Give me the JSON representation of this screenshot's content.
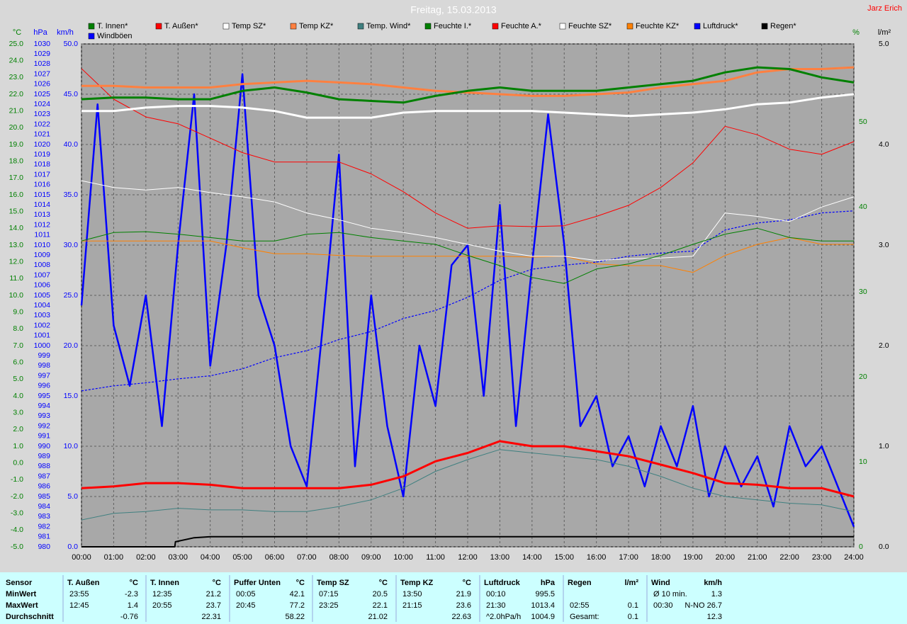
{
  "author": "Jarz Erich",
  "chart_data": {
    "type": "line",
    "title": "Freitag, 15.03.2013",
    "xlim": [
      0,
      24
    ],
    "xticks": [
      {
        "value": 0,
        "label": "00:00"
      },
      {
        "value": 1,
        "label": "01:00"
      },
      {
        "value": 2,
        "label": "02:00"
      },
      {
        "value": 3,
        "label": "03:00"
      },
      {
        "value": 4,
        "label": "04:00"
      },
      {
        "value": 5,
        "label": "05:00"
      },
      {
        "value": 6,
        "label": "06:00"
      },
      {
        "value": 7,
        "label": "07:00"
      },
      {
        "value": 8,
        "label": "08:00"
      },
      {
        "value": 9,
        "label": "09:00"
      },
      {
        "value": 10,
        "label": "10:00"
      },
      {
        "value": 11,
        "label": "11:00"
      },
      {
        "value": 12,
        "label": "12:00"
      },
      {
        "value": 13,
        "label": "13:00"
      },
      {
        "value": 14,
        "label": "14:00"
      },
      {
        "value": 15,
        "label": "15:00"
      },
      {
        "value": 16,
        "label": "16:00"
      },
      {
        "value": 17,
        "label": "17:00"
      },
      {
        "value": 18,
        "label": "18:00"
      },
      {
        "value": 19,
        "label": "19:00"
      },
      {
        "value": 20,
        "label": "20:00"
      },
      {
        "value": 21,
        "label": "21:00"
      },
      {
        "value": 22,
        "label": "22:00"
      },
      {
        "value": 23,
        "label": "23:00"
      },
      {
        "value": 24,
        "label": "24:00"
      }
    ],
    "grid": true,
    "x": [
      0,
      1,
      2,
      3,
      4,
      5,
      6,
      7,
      8,
      9,
      10,
      11,
      12,
      13,
      14,
      15,
      16,
      17,
      18,
      19,
      20,
      21,
      22,
      23,
      24
    ],
    "axes": [
      {
        "label": "°C",
        "side": "left",
        "color": "#008000",
        "lim": [
          -5,
          25
        ],
        "ticks": [
          {
            "value": -5,
            "label": "-5.0"
          },
          {
            "value": -4,
            "label": "-4.0"
          },
          {
            "value": -3,
            "label": "-3.0"
          },
          {
            "value": -2,
            "label": "-2.0"
          },
          {
            "value": -1,
            "label": "-1.0"
          },
          {
            "value": 0,
            "label": "0.0"
          },
          {
            "value": 1,
            "label": "1.0"
          },
          {
            "value": 2,
            "label": "2.0"
          },
          {
            "value": 3,
            "label": "3.0"
          },
          {
            "value": 4,
            "label": "4.0"
          },
          {
            "value": 5,
            "label": "5.0"
          },
          {
            "value": 6,
            "label": "6.0"
          },
          {
            "value": 7,
            "label": "7.0"
          },
          {
            "value": 8,
            "label": "8.0"
          },
          {
            "value": 9,
            "label": "9.0"
          },
          {
            "value": 10,
            "label": "10.0"
          },
          {
            "value": 11,
            "label": "11.0"
          },
          {
            "value": 12,
            "label": "12.0"
          },
          {
            "value": 13,
            "label": "13.0"
          },
          {
            "value": 14,
            "label": "14.0"
          },
          {
            "value": 15,
            "label": "15.0"
          },
          {
            "value": 16,
            "label": "16.0"
          },
          {
            "value": 17,
            "label": "17.0"
          },
          {
            "value": 18,
            "label": "18.0"
          },
          {
            "value": 19,
            "label": "19.0"
          },
          {
            "value": 20,
            "label": "20.0"
          },
          {
            "value": 21,
            "label": "21.0"
          },
          {
            "value": 22,
            "label": "22.0"
          },
          {
            "value": 23,
            "label": "23.0"
          },
          {
            "value": 24,
            "label": "24.0"
          },
          {
            "value": 25,
            "label": "25.0"
          }
        ]
      },
      {
        "label": "hPa",
        "side": "left",
        "color": "#0000ff",
        "lim": [
          980,
          1030
        ],
        "ticks": [
          980,
          981,
          982,
          983,
          984,
          985,
          986,
          987,
          988,
          989,
          990,
          991,
          992,
          993,
          994,
          995,
          996,
          997,
          998,
          999,
          1000,
          1001,
          1002,
          1003,
          1004,
          1005,
          1006,
          1007,
          1008,
          1009,
          1010,
          1011,
          1012,
          1013,
          1014,
          1015,
          1016,
          1017,
          1018,
          1019,
          1020,
          1021,
          1022,
          1023,
          1024,
          1025,
          1026,
          1027,
          1028,
          1029,
          1030
        ]
      },
      {
        "label": "km/h",
        "side": "left",
        "color": "#0000ff",
        "lim": [
          0,
          50
        ],
        "grid": true,
        "ticks": [
          {
            "value": 0,
            "label": "0.0"
          },
          {
            "value": 5,
            "label": "5.0"
          },
          {
            "value": 10,
            "label": "10.0"
          },
          {
            "value": 15,
            "label": "15.0"
          },
          {
            "value": 20,
            "label": "20.0"
          },
          {
            "value": 25,
            "label": "25.0"
          },
          {
            "value": 30,
            "label": "30.0"
          },
          {
            "value": 35,
            "label": "35.0"
          },
          {
            "value": 40,
            "label": "40.0"
          },
          {
            "value": 45,
            "label": "45.0"
          },
          {
            "value": 50,
            "label": "50.0"
          }
        ]
      },
      {
        "label": "%",
        "side": "right",
        "color": "#008000",
        "lim": [
          0,
          59.2
        ],
        "ticks": [
          0,
          10,
          20,
          30,
          40,
          50
        ]
      },
      {
        "label": "l/m²",
        "side": "right",
        "color": "#000000",
        "lim": [
          0,
          5
        ],
        "ticks": [
          {
            "value": 0,
            "label": "0.0"
          },
          {
            "value": 1,
            "label": "1.0"
          },
          {
            "value": 2,
            "label": "2.0"
          },
          {
            "value": 3,
            "label": "3.0"
          },
          {
            "value": 4,
            "label": "4.0"
          },
          {
            "value": 5,
            "label": "5.0"
          }
        ]
      }
    ],
    "series": [
      {
        "name": "T. Innen*",
        "color": "#008000",
        "axis": 0,
        "style": "thick",
        "values": [
          21.7,
          21.8,
          21.8,
          21.7,
          21.7,
          22.2,
          22.4,
          22.1,
          21.7,
          21.6,
          21.5,
          21.9,
          22.2,
          22.4,
          22.2,
          22.2,
          22.2,
          22.4,
          22.6,
          22.8,
          23.3,
          23.6,
          23.5,
          23.0,
          22.7
        ]
      },
      {
        "name": "T. Außen*",
        "color": "#ff0000",
        "axis": 0,
        "style": "thick",
        "values": [
          -1.5,
          -1.4,
          -1.2,
          -1.2,
          -1.3,
          -1.5,
          -1.5,
          -1.5,
          -1.5,
          -1.3,
          -0.8,
          0.1,
          0.6,
          1.3,
          1.0,
          1.0,
          0.7,
          0.4,
          -0.1,
          -0.6,
          -1.2,
          -1.3,
          -1.5,
          -1.5,
          -2.0
        ]
      },
      {
        "name": "Temp SZ*",
        "color": "#ffffff",
        "axis": 0,
        "style": "thick",
        "values": [
          21.0,
          21.0,
          21.2,
          21.3,
          21.3,
          21.2,
          21.0,
          20.6,
          20.6,
          20.6,
          20.9,
          21.0,
          21.0,
          21.0,
          21.0,
          20.9,
          20.8,
          20.7,
          20.8,
          20.9,
          21.1,
          21.4,
          21.5,
          21.8,
          22.0
        ]
      },
      {
        "name": "Temp KZ*",
        "color": "#ff8040",
        "axis": 0,
        "style": "thick",
        "values": [
          22.5,
          22.5,
          22.4,
          22.4,
          22.4,
          22.6,
          22.7,
          22.8,
          22.7,
          22.6,
          22.4,
          22.2,
          22.1,
          22.0,
          21.9,
          21.9,
          22.0,
          22.1,
          22.4,
          22.6,
          22.8,
          23.3,
          23.5,
          23.5,
          23.6
        ]
      },
      {
        "name": "Temp. Wind*",
        "color": "#408080",
        "axis": 0,
        "style": "thin",
        "values": [
          -3.4,
          -3.0,
          -2.9,
          -2.7,
          -2.8,
          -2.8,
          -2.9,
          -2.9,
          -2.6,
          -2.2,
          -1.5,
          -0.5,
          0.2,
          0.8,
          0.6,
          0.4,
          0.2,
          -0.2,
          -0.8,
          -1.5,
          -2.0,
          -2.2,
          -2.4,
          -2.5,
          -2.9
        ]
      },
      {
        "name": "Feuchte I.*",
        "color": "#008000",
        "axis": 3,
        "style": "thin",
        "values": [
          36.0,
          37.0,
          37.1,
          36.8,
          36.4,
          36.0,
          36.0,
          36.8,
          37.0,
          36.4,
          36.0,
          35.6,
          34.3,
          33.1,
          31.7,
          31.0,
          32.7,
          33.3,
          34.3,
          35.6,
          36.8,
          37.5,
          36.4,
          36.0,
          36.0
        ]
      },
      {
        "name": "Feuchte A.*",
        "color": "#ff0000",
        "axis": 3,
        "style": "thin",
        "values": [
          56.3,
          52.7,
          50.6,
          49.8,
          48.1,
          46.4,
          45.3,
          45.3,
          45.3,
          43.9,
          41.8,
          39.3,
          37.5,
          37.8,
          37.7,
          37.8,
          38.9,
          40.2,
          42.3,
          45.2,
          49.5,
          48.5,
          46.8,
          46.2,
          47.7
        ]
      },
      {
        "name": "Feuchte SZ*",
        "color": "#ffffff",
        "axis": 3,
        "style": "thin",
        "values": [
          43.1,
          42.3,
          42.0,
          42.3,
          41.7,
          41.2,
          40.6,
          39.3,
          38.5,
          37.5,
          37.0,
          36.4,
          35.6,
          34.8,
          34.2,
          34.2,
          33.7,
          33.9,
          34.0,
          34.2,
          39.3,
          38.9,
          38.3,
          40.0,
          41.2
        ]
      },
      {
        "name": "Feuchte KZ*",
        "color": "#ff8000",
        "axis": 3,
        "style": "thin",
        "values": [
          36.0,
          36.0,
          36.0,
          36.0,
          36.0,
          35.2,
          34.5,
          34.5,
          34.3,
          34.2,
          34.2,
          34.2,
          34.2,
          34.2,
          34.1,
          34.2,
          33.3,
          33.1,
          33.1,
          32.3,
          34.3,
          35.6,
          36.4,
          35.6,
          35.6
        ]
      },
      {
        "name": "Luftdruck*",
        "color": "#0000ff",
        "axis": 1,
        "style": "dashed",
        "values": [
          995.5,
          996.0,
          996.3,
          996.7,
          997.0,
          997.7,
          998.8,
          999.5,
          1000.6,
          1001.4,
          1002.7,
          1003.5,
          1004.8,
          1006.5,
          1007.6,
          1008.0,
          1008.3,
          1008.9,
          1009.2,
          1009.4,
          1011.5,
          1012.2,
          1012.5,
          1013.2,
          1013.4
        ]
      },
      {
        "name": "Regen*",
        "color": "#000000",
        "axis": 4,
        "style": "medium",
        "x": [
          0,
          2.9,
          2.92,
          3.5,
          4,
          24
        ],
        "values": [
          0,
          0,
          0.05,
          0.09,
          0.1,
          0.1
        ]
      },
      {
        "name": "Windböen",
        "color": "#0000ff",
        "axis": 2,
        "style": "gust",
        "x": [
          0,
          0.5,
          1,
          1.5,
          2,
          2.5,
          3,
          3.5,
          4,
          4.5,
          5,
          5.5,
          6,
          6.5,
          7,
          7.5,
          8,
          8.5,
          9,
          9.5,
          10,
          10.5,
          11,
          11.5,
          12,
          12.5,
          13,
          13.5,
          14,
          14.5,
          15,
          15.5,
          16,
          16.5,
          17,
          17.5,
          18,
          18.5,
          19,
          19.5,
          20,
          20.5,
          21,
          21.5,
          22,
          22.5,
          23,
          23.5,
          24
        ],
        "values": [
          24,
          44,
          22,
          16,
          25,
          12,
          30,
          45,
          18,
          30,
          47,
          25,
          20,
          10,
          6,
          22,
          39,
          8,
          25,
          12,
          5,
          20,
          14,
          28,
          30,
          15,
          34,
          12,
          28,
          43,
          30,
          12,
          15,
          8,
          11,
          6,
          12,
          8,
          14,
          5,
          10,
          6,
          9,
          4,
          12,
          8,
          10,
          6,
          2
        ]
      }
    ]
  },
  "stats": {
    "row_labels": [
      "Sensor",
      "MinWert",
      "MaxWert",
      "Durchschnitt"
    ],
    "columns": [
      {
        "name": "T. Außen",
        "unit": "°C",
        "rows": [
          [
            "23:55",
            "-2.3"
          ],
          [
            "12:45",
            "1.4"
          ],
          [
            "-0.76"
          ]
        ]
      },
      {
        "name": "T. Innen",
        "unit": "°C",
        "rows": [
          [
            "12:35",
            "21.2"
          ],
          [
            "20:55",
            "23.7"
          ],
          [
            "22.31"
          ]
        ]
      },
      {
        "name": "Puffer Unten",
        "unit": "°C",
        "rows": [
          [
            "00:05",
            "42.1"
          ],
          [
            "20:45",
            "77.2"
          ],
          [
            "58.22"
          ]
        ]
      },
      {
        "name": "Temp SZ",
        "unit": "°C",
        "rows": [
          [
            "07:15",
            "20.5"
          ],
          [
            "23:25",
            "22.1"
          ],
          [
            "21.02"
          ]
        ]
      },
      {
        "name": "Temp KZ",
        "unit": "°C",
        "rows": [
          [
            "13:50",
            "21.9"
          ],
          [
            "21:15",
            "23.6"
          ],
          [
            "22.63"
          ]
        ]
      },
      {
        "name": "Luftdruck",
        "unit": "hPa",
        "rows": [
          [
            "00:10",
            "995.5"
          ],
          [
            "21:30",
            "1013.4"
          ],
          [
            "^2.0hPa/h",
            "1004.9"
          ]
        ]
      },
      {
        "name": "Regen",
        "unit": "l/m²",
        "rows": [
          [],
          [
            "02:55",
            "0.1"
          ],
          [
            "Gesamt:",
            "0.1"
          ]
        ]
      },
      {
        "name": "Wind",
        "unit": "km/h",
        "rows": [
          [
            "Ø 10 min.",
            "1.3"
          ],
          [
            "00:30",
            "N-NO 26.7"
          ],
          [
            "12.3"
          ]
        ]
      }
    ]
  }
}
